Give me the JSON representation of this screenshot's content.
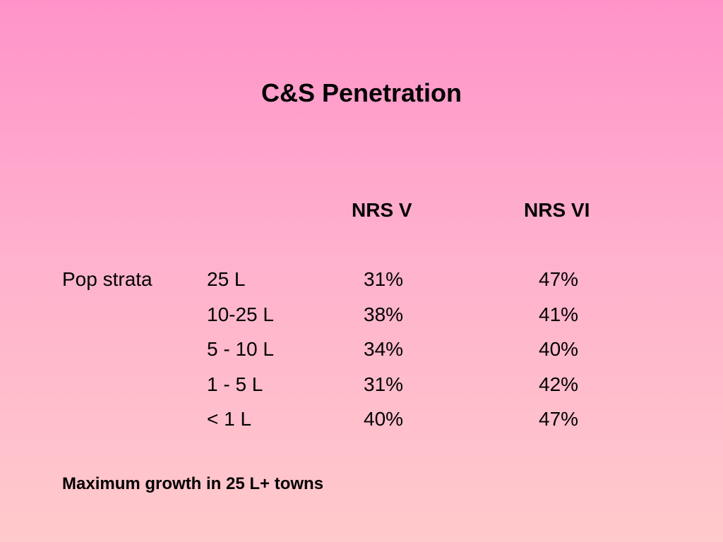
{
  "slide": {
    "title": "C&S Penetration",
    "columns": [
      "NRS V",
      "NRS VI"
    ],
    "row_group_label": "Pop strata",
    "rows": [
      {
        "stratum": "25 L",
        "nrs_v": "31%",
        "nrs_vi": "47%"
      },
      {
        "stratum": "10-25 L",
        "nrs_v": "38%",
        "nrs_vi": "41%"
      },
      {
        "stratum": "5 - 10 L",
        "nrs_v": "34%",
        "nrs_vi": "40%"
      },
      {
        "stratum": "1 - 5 L",
        "nrs_v": "31%",
        "nrs_vi": "42%"
      },
      {
        "stratum": "< 1 L",
        "nrs_v": "40%",
        "nrs_vi": "47%"
      }
    ],
    "footnote": "Maximum growth in 25 L+ towns"
  },
  "colors": {
    "background_top": "#ff93c9",
    "background_bottom": "#ffcacb",
    "text": "#000000"
  }
}
